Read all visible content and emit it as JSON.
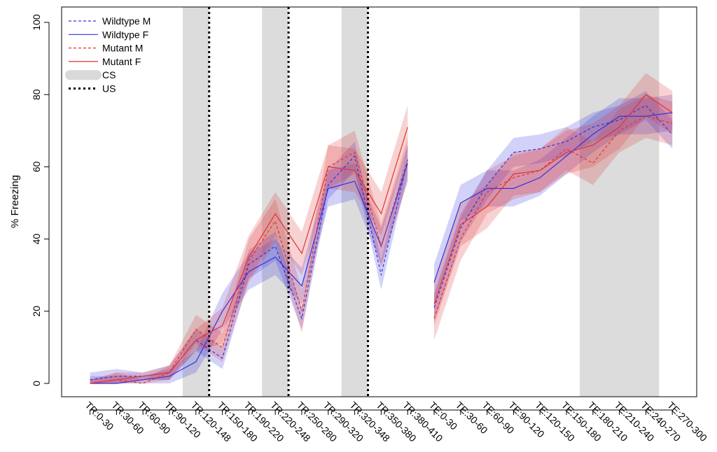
{
  "chart_data": {
    "type": "line",
    "title": "",
    "xlabel": "",
    "ylabel": "% Freezing",
    "ylim": [
      0,
      100
    ],
    "yticks": [
      0,
      20,
      40,
      60,
      80,
      100
    ],
    "categories": [
      "TR:0-30",
      "TR:30-60",
      "TR:60-90",
      "TR:90-120",
      "TR:120-148",
      "TR:150-180",
      "TR:190-220",
      "TR:220-248",
      "TR:250-280",
      "TR:290-320",
      "TR:320-348",
      "TR:350-380",
      "TR:380-410",
      "TE:0-30",
      "TE:30-60",
      "TE:60-90",
      "TE:90-120",
      "TE:120-150",
      "TE:150-180",
      "TE:180-210",
      "TE:210-240",
      "TE:240-270",
      "TE:270-300"
    ],
    "cs_intervals": [
      [
        4,
        5
      ],
      [
        7,
        8
      ],
      [
        10,
        11
      ],
      [
        19,
        22
      ]
    ],
    "us_lines": [
      5,
      8,
      11
    ],
    "series": [
      {
        "name": "Wildtype M",
        "color": "#3333dd",
        "style": "dashed",
        "values": [
          1,
          2,
          2,
          3,
          12,
          7,
          33,
          38,
          18,
          55,
          63,
          30,
          62,
          21,
          43,
          55,
          64,
          65,
          67,
          71,
          73,
          77,
          69
        ],
        "err": [
          2,
          2,
          1,
          2,
          3,
          3,
          4,
          4,
          3,
          4,
          4,
          4,
          4,
          4,
          4,
          4,
          4,
          4,
          4,
          4,
          4,
          4,
          4
        ]
      },
      {
        "name": "Wildtype F",
        "color": "#3333dd",
        "style": "solid",
        "values": [
          0,
          0,
          1,
          2,
          6,
          20,
          31,
          35,
          27,
          54,
          56,
          38,
          61,
          28,
          50,
          54,
          54,
          57,
          63,
          69,
          74,
          74,
          75
        ],
        "err": [
          2,
          2,
          1,
          2,
          3,
          5,
          5,
          5,
          5,
          5,
          5,
          5,
          5,
          5,
          5,
          5,
          5,
          5,
          5,
          5,
          5,
          5,
          5
        ]
      },
      {
        "name": "Mutant M",
        "color": "#e03333",
        "style": "dashed",
        "values": [
          0,
          1,
          0,
          3,
          15,
          10,
          34,
          45,
          20,
          60,
          64,
          38,
          62,
          18,
          40,
          53,
          57,
          59,
          65,
          61,
          70,
          74,
          72
        ],
        "err": [
          1,
          2,
          1,
          2,
          4,
          4,
          6,
          6,
          6,
          6,
          6,
          6,
          6,
          6,
          6,
          6,
          6,
          6,
          6,
          6,
          6,
          6,
          6
        ]
      },
      {
        "name": "Mutant F",
        "color": "#e03333",
        "style": "solid",
        "values": [
          0,
          1,
          2,
          3,
          12,
          16,
          35,
          47,
          36,
          60,
          59,
          47,
          71,
          22,
          44,
          49,
          58,
          59,
          64,
          66,
          71,
          80,
          75
        ],
        "err": [
          1,
          2,
          1,
          2,
          3,
          5,
          6,
          6,
          6,
          6,
          6,
          6,
          6,
          6,
          6,
          6,
          6,
          6,
          6,
          6,
          6,
          6,
          6
        ]
      }
    ],
    "legend": {
      "position": "top-left",
      "entries": [
        {
          "label": "Wildtype M",
          "kind": "line",
          "color": "#3333dd",
          "style": "dashed"
        },
        {
          "label": "Wildtype F",
          "kind": "line",
          "color": "#3333dd",
          "style": "solid"
        },
        {
          "label": "Mutant M",
          "kind": "line",
          "color": "#e03333",
          "style": "dashed"
        },
        {
          "label": "Mutant F",
          "kind": "line",
          "color": "#e03333",
          "style": "solid"
        },
        {
          "label": "CS",
          "kind": "band",
          "color": "#d9d9d9",
          "style": "solid"
        },
        {
          "label": "US",
          "kind": "line",
          "color": "#000000",
          "style": "dotted"
        }
      ]
    },
    "grid": false
  }
}
